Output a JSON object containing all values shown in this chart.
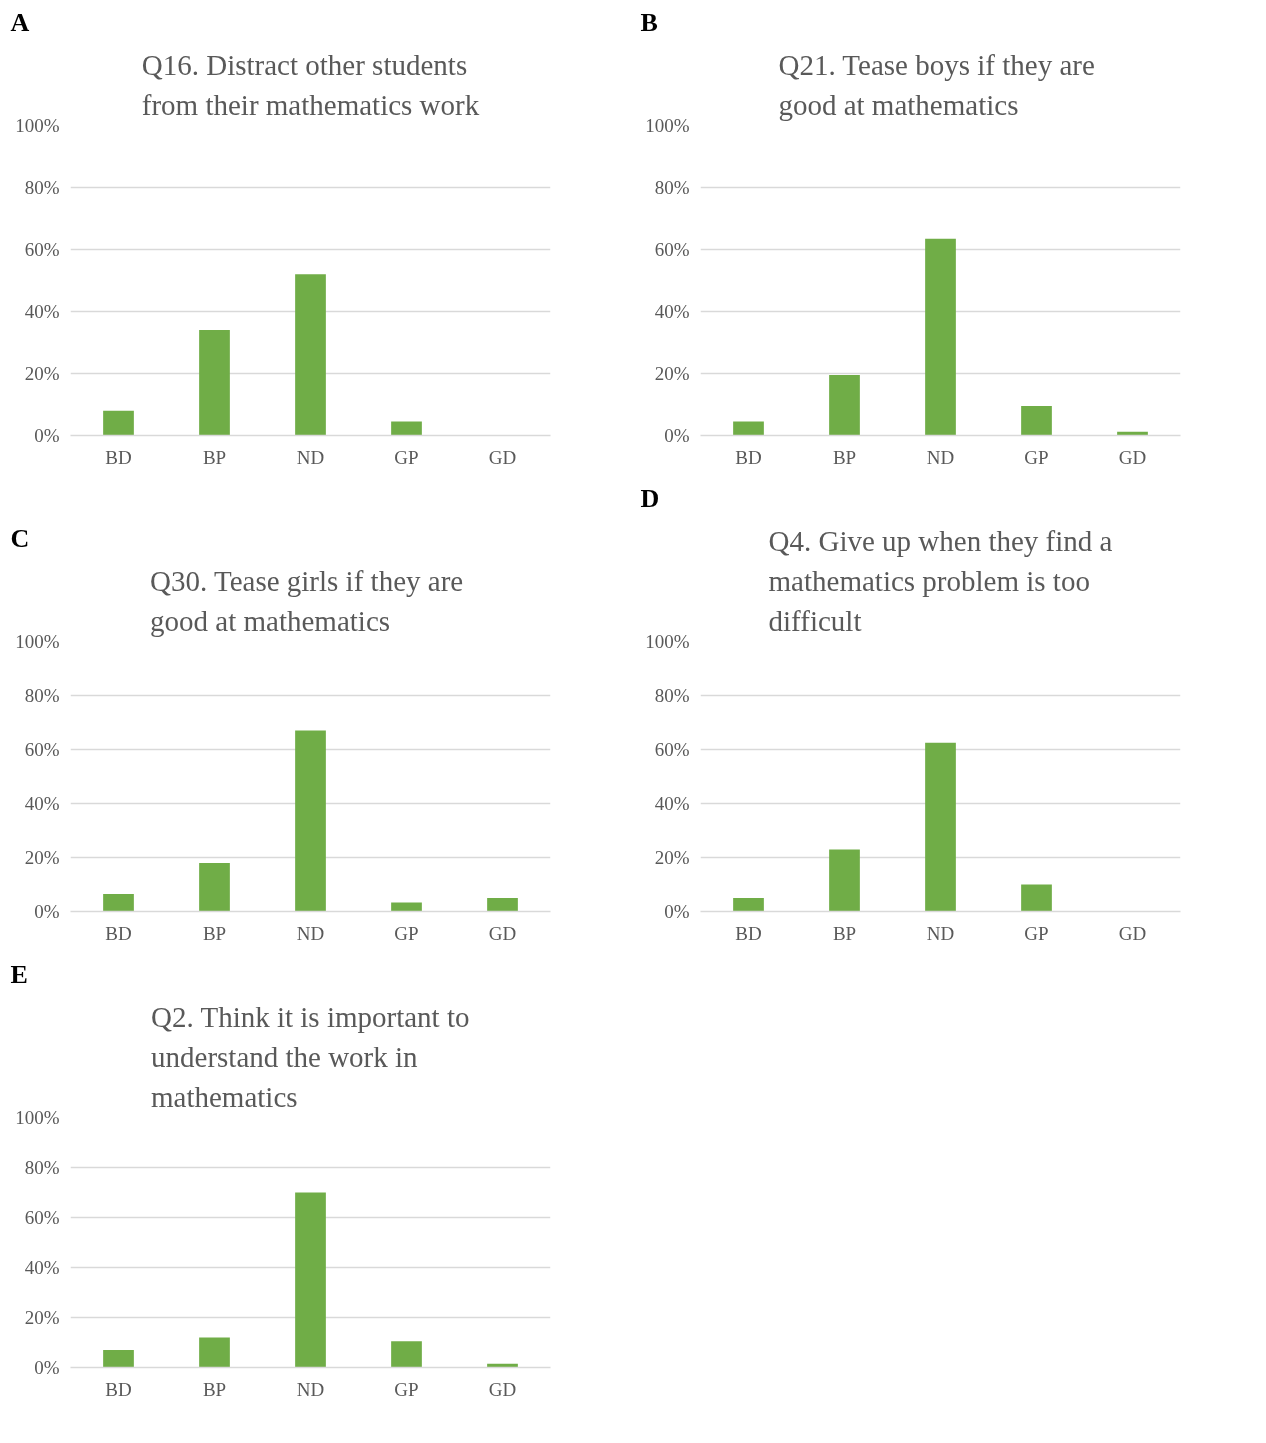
{
  "chart_data": [
    {
      "type": "bar",
      "annotations": [
        "A"
      ],
      "title": "Q16. Distract other students\nfrom their mathematics work",
      "categories": [
        "BD",
        "BP",
        "ND",
        "GP",
        "GD"
      ],
      "values": [
        8,
        34,
        52,
        4.5,
        0
      ],
      "color": "#70ad47",
      "ylim": [
        0,
        100
      ],
      "yticks": [
        {
          "value": 0,
          "label": "0%"
        },
        {
          "value": 20,
          "label": "20%"
        },
        {
          "value": 40,
          "label": "40%"
        },
        {
          "value": 60,
          "label": "60%"
        },
        {
          "value": 80,
          "label": "80%"
        },
        {
          "value": 100,
          "label": "100%"
        }
      ],
      "grid": "y"
    },
    {
      "type": "bar",
      "annotations": [
        "B"
      ],
      "title": "Q21. Tease boys if  they are\ngood at mathematics",
      "categories": [
        "BD",
        "BP",
        "ND",
        "GP",
        "GD"
      ],
      "values": [
        4.5,
        19.5,
        63.5,
        9.5,
        1.2
      ],
      "color": "#70ad47",
      "ylim": [
        0,
        100
      ],
      "yticks": [
        {
          "value": 0,
          "label": "0%"
        },
        {
          "value": 20,
          "label": "20%"
        },
        {
          "value": 40,
          "label": "40%"
        },
        {
          "value": 60,
          "label": "60%"
        },
        {
          "value": 80,
          "label": "80%"
        },
        {
          "value": 100,
          "label": "100%"
        }
      ],
      "grid": "y"
    },
    {
      "type": "bar",
      "annotations": [
        "C"
      ],
      "title": "Q30. Tease girls if  they are\ngood at mathematics",
      "categories": [
        "BD",
        "BP",
        "ND",
        "GP",
        "GD"
      ],
      "values": [
        6.5,
        18,
        67,
        3.3,
        5
      ],
      "color": "#70ad47",
      "ylim": [
        0,
        100
      ],
      "yticks": [
        {
          "value": 0,
          "label": "0%"
        },
        {
          "value": 20,
          "label": "20%"
        },
        {
          "value": 40,
          "label": "40%"
        },
        {
          "value": 60,
          "label": "60%"
        },
        {
          "value": 80,
          "label": "80%"
        },
        {
          "value": 100,
          "label": "100%"
        }
      ],
      "grid": "y"
    },
    {
      "type": "bar",
      "annotations": [
        "D"
      ],
      "title": "Q4. Give up when they find a\nmathematics problem is too\ndifficult",
      "categories": [
        "BD",
        "BP",
        "ND",
        "GP",
        "GD"
      ],
      "values": [
        5,
        23,
        62.5,
        10,
        0
      ],
      "color": "#70ad47",
      "ylim": [
        0,
        100
      ],
      "yticks": [
        {
          "value": 0,
          "label": "0%"
        },
        {
          "value": 20,
          "label": "20%"
        },
        {
          "value": 40,
          "label": "40%"
        },
        {
          "value": 60,
          "label": "60%"
        },
        {
          "value": 80,
          "label": "80%"
        },
        {
          "value": 100,
          "label": "100%"
        }
      ],
      "grid": "y"
    },
    {
      "type": "bar",
      "annotations": [
        "E"
      ],
      "title": "Q2. Think it is important to\nunderstand the work in\nmathematics",
      "categories": [
        "BD",
        "BP",
        "ND",
        "GP",
        "GD"
      ],
      "values": [
        7,
        12,
        70,
        10.5,
        1.5
      ],
      "color": "#70ad47",
      "ylim": [
        0,
        100
      ],
      "yticks": [
        {
          "value": 0,
          "label": "0%"
        },
        {
          "value": 20,
          "label": "20%"
        },
        {
          "value": 40,
          "label": "40%"
        },
        {
          "value": 60,
          "label": "60%"
        },
        {
          "value": 80,
          "label": "80%"
        },
        {
          "value": 100,
          "label": "100%"
        }
      ],
      "grid": "y"
    }
  ]
}
